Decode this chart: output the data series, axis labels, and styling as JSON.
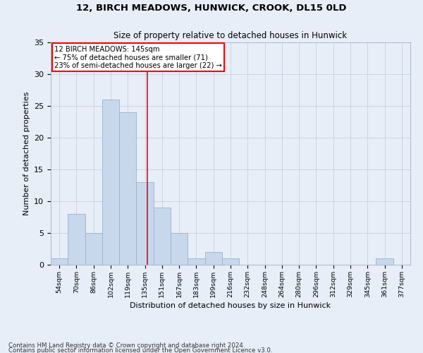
{
  "title": "12, BIRCH MEADOWS, HUNWICK, CROOK, DL15 0LD",
  "subtitle": "Size of property relative to detached houses in Hunwick",
  "xlabel": "Distribution of detached houses by size in Hunwick",
  "ylabel": "Number of detached properties",
  "bar_labels": [
    "54sqm",
    "70sqm",
    "86sqm",
    "102sqm",
    "119sqm",
    "135sqm",
    "151sqm",
    "167sqm",
    "183sqm",
    "199sqm",
    "216sqm",
    "232sqm",
    "248sqm",
    "264sqm",
    "280sqm",
    "296sqm",
    "312sqm",
    "329sqm",
    "345sqm",
    "361sqm",
    "377sqm"
  ],
  "bar_values": [
    1,
    8,
    5,
    26,
    24,
    13,
    9,
    5,
    1,
    2,
    1,
    0,
    0,
    0,
    0,
    0,
    0,
    0,
    0,
    1,
    0
  ],
  "bar_color": "#c8d8ec",
  "bar_edgecolor": "#9ab0c8",
  "annotation_text": "12 BIRCH MEADOWS: 145sqm\n← 75% of detached houses are smaller (71)\n23% of semi-detached houses are larger (22) →",
  "annotation_box_facecolor": "white",
  "annotation_box_edgecolor": "red",
  "vline_color": "red",
  "ylim": [
    0,
    35
  ],
  "yticks": [
    0,
    5,
    10,
    15,
    20,
    25,
    30,
    35
  ],
  "grid_color": "#c5cfe0",
  "bg_color": "#e8eef8",
  "footnote1": "Contains HM Land Registry data © Crown copyright and database right 2024.",
  "footnote2": "Contains public sector information licensed under the Open Government Licence v3.0."
}
